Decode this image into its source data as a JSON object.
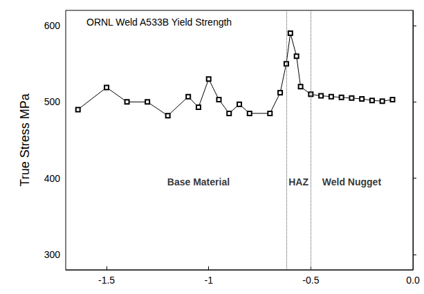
{
  "chart_data": {
    "type": "line",
    "title": "ORNL Weld A533B Yield Strength",
    "y_label": "True Stress MPa",
    "x": [
      -1.64,
      -1.5,
      -1.4,
      -1.3,
      -1.2,
      -1.1,
      -1.05,
      -1.0,
      -0.95,
      -0.9,
      -0.85,
      -0.8,
      -0.7,
      -0.65,
      -0.62,
      -0.6,
      -0.57,
      -0.55,
      -0.5,
      -0.45,
      -0.4,
      -0.35,
      -0.3,
      -0.25,
      -0.2,
      -0.15,
      -0.1
    ],
    "values": [
      490,
      519,
      500,
      500,
      482,
      507,
      493,
      530,
      503,
      485,
      497,
      485,
      485,
      512,
      550,
      590,
      560,
      520,
      510,
      508,
      507,
      506,
      505,
      504,
      502,
      501,
      503
    ],
    "color": "#000000",
    "marker": "square",
    "xlim": [
      -1.7,
      0.0
    ],
    "xticks": [
      -1.5,
      -1.0,
      -0.5,
      {
        "value": 0.0,
        "label": "0.0"
      }
    ],
    "ylim": [
      280,
      620
    ],
    "yticks": [
      300,
      400,
      500,
      600
    ],
    "vlines": [
      -0.62,
      -0.5
    ],
    "annotations": [
      {
        "text": "Base Material",
        "x": -1.05,
        "y": 395
      },
      {
        "text": "HAZ",
        "x": -0.56,
        "y": 395
      },
      {
        "text": "Weld Nugget",
        "x": -0.3,
        "y": 395
      }
    ],
    "grid": false
  }
}
